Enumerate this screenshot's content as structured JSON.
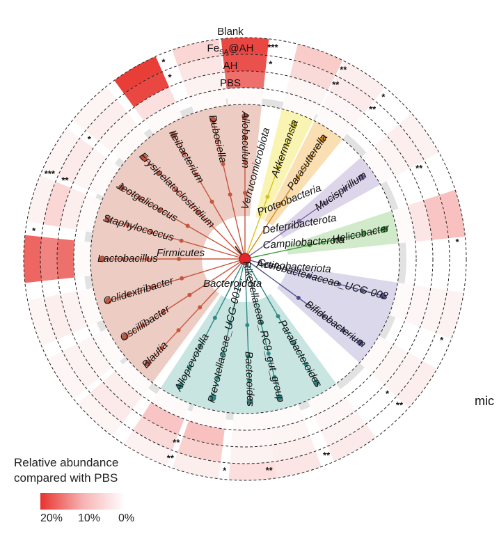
{
  "rings": [
    "Blank",
    "Feₐ@AH",
    "AH",
    "PBS"
  ],
  "ring_labels": {
    "blank": "Blank",
    "fesa_main": "Fe",
    "fesa_sub": "SA",
    "fesa_tail": "@AH",
    "ah": "AH",
    "pbs": "PBS"
  },
  "root": {
    "color": "#e3262b"
  },
  "phyla": [
    {
      "name": "Firmicutes",
      "color": "#c8553d",
      "fill": "#e9c3b8"
    },
    {
      "name": "Bacteroidota",
      "color": "#2f8a86",
      "fill": "#bfe0dc"
    },
    {
      "name": "Verrucomicrobiota",
      "color": "#d8c21f",
      "fill": "#f9f2a6"
    },
    {
      "name": "Proteobacteria",
      "color": "#d7891b",
      "fill": "#f9d9a4"
    },
    {
      "name": "Deferribacterota",
      "color": "#7a67a0",
      "fill": "#d7cfe6"
    },
    {
      "name": "Campilobacterota",
      "color": "#3f9a3c",
      "fill": "#c8e6c1"
    },
    {
      "name": "Actinobacteriota",
      "color": "#4f4f8a",
      "fill": "#d3d1e6"
    }
  ],
  "genera": [
    {
      "name": "Akkermansia",
      "phylum": "Verrucomicrobiota",
      "stars": [
        "**",
        "**",
        "",
        ""
      ],
      "heat": [
        0.25,
        0.18,
        0.05,
        0.02
      ]
    },
    {
      "name": "Parasutterella",
      "phylum": "Proteobacteria",
      "stars": [
        "*",
        "**",
        "",
        ""
      ],
      "heat": [
        0.08,
        0.1,
        0.04,
        0.02
      ]
    },
    {
      "name": "Mucispirillum",
      "phylum": "Deferribacterota",
      "stars": [
        "",
        "**",
        "",
        ""
      ],
      "heat": [
        0.06,
        0.08,
        0.05,
        0.02
      ]
    },
    {
      "name": "Helicobacter",
      "phylum": "Campilobacterota",
      "stars": [
        "*",
        "",
        "",
        ""
      ],
      "heat": [
        0.3,
        0.28,
        0.12,
        0.02
      ]
    },
    {
      "name": "Coriobacteriaceae_UCG-003",
      "phylum": "Actinobacteriota",
      "stars": [
        "*",
        "",
        "",
        ""
      ],
      "heat": [
        0.06,
        0.05,
        0.04,
        0.02
      ]
    },
    {
      "name": "Bifidobacterium",
      "phylum": "Actinobacteriota",
      "stars": [
        "**",
        "*",
        "",
        ""
      ],
      "heat": [
        0.08,
        0.06,
        0.05,
        0.02
      ]
    },
    {
      "name": "Parabacteroides",
      "phylum": "Bacteroidota",
      "stars": [
        "**",
        "",
        "",
        ""
      ],
      "heat": [
        0.1,
        0.06,
        0.04,
        0.02
      ]
    },
    {
      "name": "Rikenellaceae_RC9_gut_group",
      "phylum": "Bacteroidota",
      "stars": [
        "**",
        "",
        "",
        ""
      ],
      "heat": [
        0.12,
        0.08,
        0.05,
        0.02
      ]
    },
    {
      "name": "Bacteroides",
      "phylum": "Bacteroidota",
      "stars": [
        "*",
        "",
        "",
        ""
      ],
      "heat": [
        0.16,
        0.06,
        0.04,
        0.02
      ]
    },
    {
      "name": "Prevotellaceae_UCG-001",
      "phylum": "Bacteroidota",
      "stars": [
        "**",
        "**",
        "",
        ""
      ],
      "heat": [
        0.08,
        0.22,
        0.3,
        0.02
      ]
    },
    {
      "name": "Alloprevotella",
      "phylum": "Bacteroidota",
      "stars": [
        "",
        "",
        "",
        ""
      ],
      "heat": [
        0.06,
        0.18,
        0.28,
        0.02
      ]
    },
    {
      "name": "Blautia",
      "phylum": "Firmicutes",
      "stars": [
        "",
        "",
        "",
        ""
      ],
      "heat": [
        0.05,
        0.1,
        0.08,
        0.02
      ]
    },
    {
      "name": "Oscillibacter",
      "phylum": "Firmicutes",
      "stars": [
        "",
        "",
        "",
        ""
      ],
      "heat": [
        0.04,
        0.06,
        0.05,
        0.02
      ]
    },
    {
      "name": "Colidextribacter",
      "phylum": "Firmicutes",
      "stars": [
        "",
        "",
        "",
        ""
      ],
      "heat": [
        0.05,
        0.08,
        0.06,
        0.02
      ]
    },
    {
      "name": "Lactobacillus",
      "phylum": "Firmicutes",
      "stars": [
        "*",
        "",
        "",
        ""
      ],
      "heat": [
        0.75,
        0.6,
        0.7,
        0.02
      ]
    },
    {
      "name": "Staphylococcus",
      "phylum": "Firmicutes",
      "stars": [
        "***",
        "**",
        "",
        ""
      ],
      "heat": [
        0.06,
        0.2,
        0.08,
        0.02
      ]
    },
    {
      "name": "Jeotgalicoccus",
      "phylum": "Firmicutes",
      "stars": [
        "",
        "*",
        "",
        ""
      ],
      "heat": [
        0.05,
        0.1,
        0.05,
        0.02
      ]
    },
    {
      "name": "Erysipelatoclostridium",
      "phylum": "Firmicutes",
      "stars": [
        "",
        "",
        "",
        ""
      ],
      "heat": [
        0.05,
        0.08,
        0.05,
        0.02
      ]
    },
    {
      "name": "Ileibacterium",
      "phylum": "Firmicutes",
      "stars": [
        "*",
        "*",
        "",
        ""
      ],
      "heat": [
        0.95,
        0.9,
        0.15,
        0.02
      ]
    },
    {
      "name": "Dubosiella",
      "phylum": "Firmicutes",
      "stars": [
        "",
        "",
        "",
        ""
      ],
      "heat": [
        0.2,
        0.12,
        0.06,
        0.02
      ]
    },
    {
      "name": "Allobaculum",
      "phylum": "Firmicutes",
      "stars": [
        "***",
        "*",
        "",
        ""
      ],
      "heat": [
        0.9,
        0.85,
        0.7,
        0.02
      ]
    }
  ],
  "legend": {
    "title_line1": "Relative abundance",
    "title_line2": "compared with PBS",
    "ticks": [
      "20%",
      "10%",
      "0%"
    ],
    "color_high": "#e8332d",
    "color_low": "#ffffff"
  },
  "side_text": "mic"
}
